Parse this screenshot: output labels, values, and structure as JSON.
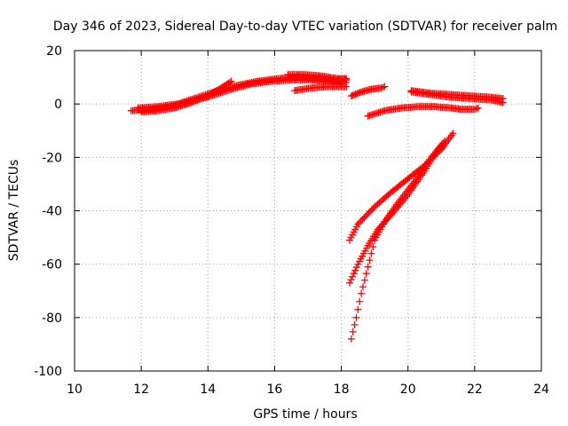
{
  "chart_data": {
    "type": "scatter",
    "title": "Day 346 of 2023, Sidereal Day-to-day VTEC variation (SDTVAR) for receiver palm",
    "xlabel": "GPS time / hours",
    "ylabel": "SDTVAR / TECUs",
    "xlim": [
      10,
      24
    ],
    "ylim": [
      -100,
      20
    ],
    "xticks": [
      "10",
      "12",
      "14",
      "16",
      "18",
      "20",
      "22",
      "24"
    ],
    "yticks": [
      "20",
      "0",
      "-20",
      "-40",
      "-60",
      "-80",
      "-100"
    ],
    "grid": true,
    "marker": "plus",
    "color": "#ff0000",
    "tracks": [
      {
        "x": [
          11.7,
          12.3,
          12.9,
          13.5,
          14.1,
          14.7,
          15.3,
          15.9,
          16.5,
          17.1,
          17.7,
          18.15
        ],
        "y": [
          -2.5,
          -2,
          -1,
          1,
          3,
          5.5,
          7.5,
          8.5,
          9,
          9,
          8.5,
          8
        ]
      },
      {
        "x": [
          11.9,
          12.5,
          13.1,
          13.7,
          14.3,
          14.9,
          15.5,
          16.1,
          16.7,
          17.3,
          17.9,
          18.15
        ],
        "y": [
          -1.5,
          -1,
          0,
          2.5,
          5,
          7,
          8.5,
          9.5,
          10,
          9.5,
          9,
          9
        ]
      },
      {
        "x": [
          12.0,
          12.5,
          13.0,
          13.5,
          14.0,
          14.4,
          14.7
        ],
        "y": [
          -3,
          -2.5,
          -1.5,
          0.5,
          3,
          6,
          8.5
        ]
      },
      {
        "x": [
          16.4,
          16.9,
          17.4,
          17.9,
          18.15
        ],
        "y": [
          11,
          11,
          10.5,
          9.5,
          9.5
        ]
      },
      {
        "x": [
          16.6,
          17.1,
          17.6,
          18.0,
          18.15
        ],
        "y": [
          5,
          6,
          6.5,
          6.5,
          6.5
        ]
      },
      {
        "x": [
          18.3,
          18.6,
          18.9,
          19.2,
          19.3
        ],
        "y": [
          3,
          4.5,
          5.5,
          6,
          6.5
        ]
      },
      {
        "x": [
          20.1,
          20.7,
          21.3,
          21.9,
          22.5,
          22.85
        ],
        "y": [
          5,
          4,
          3.5,
          3,
          2.5,
          2
        ]
      },
      {
        "x": [
          20.1,
          20.7,
          21.3,
          21.9,
          22.5,
          22.85
        ],
        "y": [
          4.5,
          3.5,
          2.5,
          2,
          1.5,
          0.5
        ]
      },
      {
        "x": [
          18.8,
          19.3,
          19.8,
          20.3,
          20.8,
          21.3,
          21.6,
          22.0,
          22.1
        ],
        "y": [
          -4.5,
          -2.5,
          -1.5,
          -1,
          -1,
          -1.5,
          -2,
          -2,
          -1.5
        ]
      },
      {
        "x": [
          18.25,
          18.5,
          19.0,
          19.5,
          20.0,
          20.5,
          21.0,
          21.35
        ],
        "y": [
          -51,
          -45,
          -38.5,
          -33,
          -28,
          -23,
          -17,
          -11
        ]
      },
      {
        "x": [
          18.25,
          18.5,
          18.8,
          19.1,
          19.5,
          20.0,
          20.5,
          20.9,
          21.1
        ],
        "y": [
          -67,
          -60,
          -53,
          -47,
          -41.5,
          -34,
          -25,
          -17,
          -14
        ]
      },
      {
        "x": [
          18.3,
          18.45,
          18.6,
          18.8,
          19.0,
          19.3,
          19.7,
          20.2,
          20.7,
          21.1
        ],
        "y": [
          -88,
          -80,
          -71,
          -61,
          -51,
          -44,
          -37,
          -29,
          -20,
          -14
        ]
      }
    ]
  }
}
